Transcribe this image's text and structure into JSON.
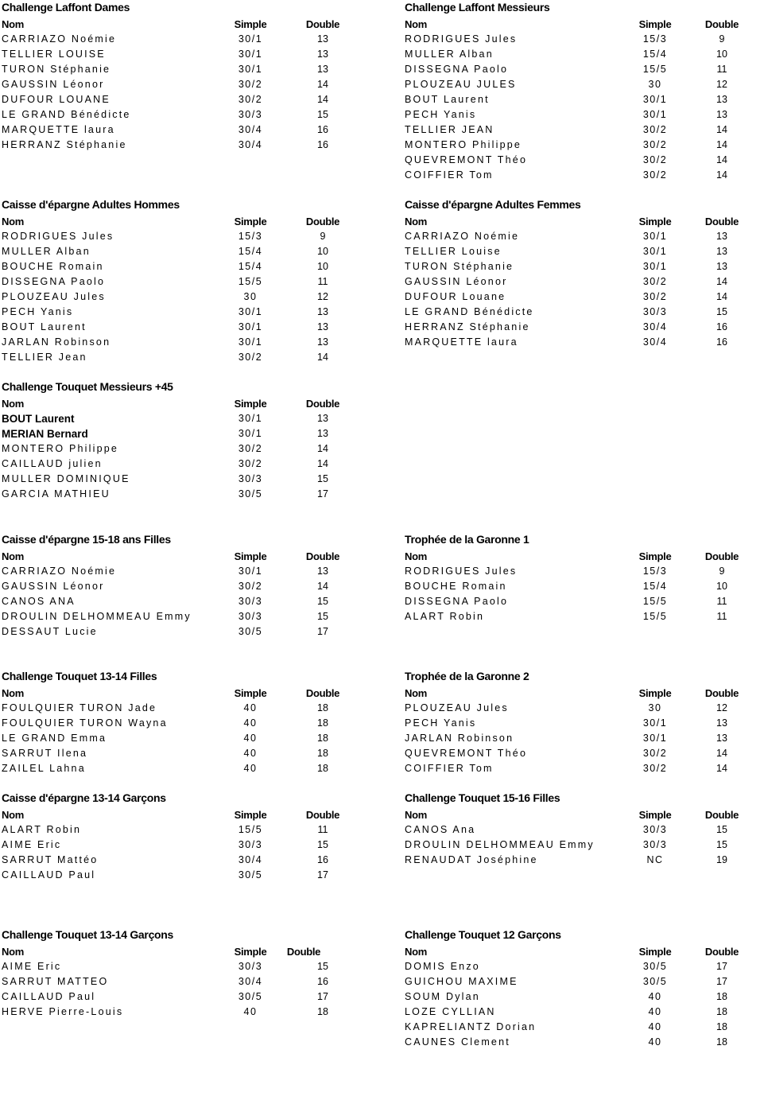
{
  "headers": {
    "nom": "Nom",
    "simple": "Simple",
    "double": "Double"
  },
  "sections": [
    {
      "title": "Challenge Laffont Dames",
      "rows": [
        [
          "CARRIAZO Noémie",
          "30/1",
          "13"
        ],
        [
          "TELLIER LOUISE",
          "30/1",
          "13"
        ],
        [
          "TURON Stéphanie",
          "30/1",
          "13"
        ],
        [
          "GAUSSIN Léonor",
          "30/2",
          "14"
        ],
        [
          "DUFOUR LOUANE",
          "30/2",
          "14"
        ],
        [
          "LE GRAND Bénédicte",
          "30/3",
          "15"
        ],
        [
          "MARQUETTE laura",
          "30/4",
          "16"
        ],
        [
          "HERRANZ Stéphanie",
          "30/4",
          "16"
        ]
      ]
    },
    {
      "title": "Challenge Laffont Messieurs",
      "rows": [
        [
          "RODRIGUES Jules",
          "15/3",
          "9"
        ],
        [
          "MULLER Alban",
          "15/4",
          "10"
        ],
        [
          "DISSEGNA Paolo",
          "15/5",
          "11"
        ],
        [
          "PLOUZEAU JULES",
          "30",
          "12"
        ],
        [
          "BOUT Laurent",
          "30/1",
          "13"
        ],
        [
          "PECH Yanis",
          "30/1",
          "13"
        ],
        [
          "TELLIER JEAN",
          "30/2",
          "14"
        ],
        [
          "MONTERO Philippe",
          "30/2",
          "14"
        ],
        [
          "QUEVREMONT Théo",
          "30/2",
          "14"
        ],
        [
          "COIFFIER Tom",
          "30/2",
          "14"
        ]
      ]
    },
    {
      "title": "Caisse d'épargne Adultes Hommes",
      "rows": [
        [
          "RODRIGUES Jules",
          "15/3",
          "9"
        ],
        [
          "MULLER Alban",
          "15/4",
          "10"
        ],
        [
          "BOUCHE Romain",
          "15/4",
          "10"
        ],
        [
          "DISSEGNA Paolo",
          "15/5",
          "11"
        ],
        [
          "PLOUZEAU Jules",
          "30",
          "12"
        ],
        [
          "PECH Yanis",
          "30/1",
          "13"
        ],
        [
          "BOUT Laurent",
          "30/1",
          "13"
        ],
        [
          "JARLAN Robinson",
          "30/1",
          "13"
        ],
        [
          "TELLIER Jean",
          "30/2",
          "14"
        ]
      ]
    },
    {
      "title": "Caisse d'épargne Adultes Femmes",
      "rows": [
        [
          "CARRIAZO Noémie",
          "30/1",
          "13"
        ],
        [
          "TELLIER Louise",
          "30/1",
          "13"
        ],
        [
          "TURON Stéphanie",
          "30/1",
          "13"
        ],
        [
          "GAUSSIN Léonor",
          "30/2",
          "14"
        ],
        [
          "DUFOUR Louane",
          "30/2",
          "14"
        ],
        [
          "LE GRAND Bénédicte",
          "30/3",
          "15"
        ],
        [
          "HERRANZ Stéphanie",
          "30/4",
          "16"
        ],
        [
          "MARQUETTE laura",
          "30/4",
          "16"
        ]
      ]
    },
    {
      "title": "Challenge Touquet Messieurs +45",
      "rows": [
        [
          "BOUT Laurent",
          "30/1",
          "13",
          true
        ],
        [
          "MERIAN Bernard",
          "30/1",
          "13",
          true
        ],
        [
          "MONTERO Philippe",
          "30/2",
          "14"
        ],
        [
          "CAILLAUD julien",
          "30/2",
          "14"
        ],
        [
          "MULLER DOMINIQUE",
          "30/3",
          "15"
        ],
        [
          "GARCIA MATHIEU",
          "30/5",
          "17"
        ]
      ]
    },
    {
      "title": "Caisse d'épargne 15-18 ans Filles",
      "rows": [
        [
          "CARRIAZO Noémie",
          "30/1",
          "13"
        ],
        [
          "GAUSSIN Léonor",
          "30/2",
          "14"
        ],
        [
          "CANOS ANA",
          "30/3",
          "15"
        ],
        [
          "DROULIN DELHOMMEAU Emmy",
          "30/3",
          "15"
        ],
        [
          "DESSAUT Lucie",
          "30/5",
          "17"
        ]
      ]
    },
    {
      "title": "Trophée de la Garonne 1",
      "rows": [
        [
          "RODRIGUES Jules",
          "15/3",
          "9"
        ],
        [
          "BOUCHE Romain",
          "15/4",
          "10"
        ],
        [
          "DISSEGNA Paolo",
          "15/5",
          "11"
        ],
        [
          "ALART Robin",
          "15/5",
          "11"
        ]
      ]
    },
    {
      "title": "Challenge Touquet 13-14 Filles",
      "rows": [
        [
          "FOULQUIER TURON Jade",
          "40",
          "18"
        ],
        [
          "FOULQUIER TURON Wayna",
          "40",
          "18"
        ],
        [
          "LE GRAND Emma",
          "40",
          "18"
        ],
        [
          "SARRUT Ilena",
          "40",
          "18"
        ],
        [
          "ZAILEL Lahna",
          "40",
          "18"
        ]
      ]
    },
    {
      "title": "Trophée de la Garonne 2",
      "rows": [
        [
          "PLOUZEAU Jules",
          "30",
          "12"
        ],
        [
          "PECH Yanis",
          "30/1",
          "13"
        ],
        [
          "JARLAN Robinson",
          "30/1",
          "13"
        ],
        [
          "QUEVREMONT Théo",
          "30/2",
          "14"
        ],
        [
          "COIFFIER Tom",
          "30/2",
          "14"
        ]
      ]
    },
    {
      "title": "Caisse d'épargne 13-14 Garçons",
      "rows": [
        [
          "ALART Robin",
          "15/5",
          "11"
        ],
        [
          "AIME Eric",
          "30/3",
          "15"
        ],
        [
          "SARRUT Mattéo",
          "30/4",
          "16"
        ],
        [
          "CAILLAUD Paul",
          "30/5",
          "17"
        ]
      ]
    },
    {
      "title": "Challenge Touquet 15-16 Filles",
      "rows": [
        [
          "CANOS Ana",
          "30/3",
          "15"
        ],
        [
          "DROULIN DELHOMMEAU Emmy",
          "30/3",
          "15"
        ],
        [
          "RENAUDAT Joséphine",
          "NC",
          "19"
        ]
      ]
    },
    {
      "title": "Challenge Touquet 13-14 Garçons",
      "rows": [
        [
          "AIME Eric",
          "30/3",
          "15"
        ],
        [
          "SARRUT MATTEO",
          "30/4",
          "16"
        ],
        [
          "CAILLAUD Paul",
          "30/5",
          "17"
        ],
        [
          "HERVE Pierre-Louis",
          "40",
          "18"
        ]
      ]
    },
    {
      "title": "Challenge Touquet 12 Garçons",
      "rows": [
        [
          "DOMIS Enzo",
          "30/5",
          "17"
        ],
        [
          "GUICHOU MAXIME",
          "30/5",
          "17"
        ],
        [
          "SOUM Dylan",
          "40",
          "18"
        ],
        [
          "LOZE CYLLIAN",
          "40",
          "18"
        ],
        [
          "KAPRELIANTZ Dorian",
          "40",
          "18"
        ],
        [
          "CAUNES Clement",
          "40",
          "18"
        ]
      ]
    }
  ]
}
